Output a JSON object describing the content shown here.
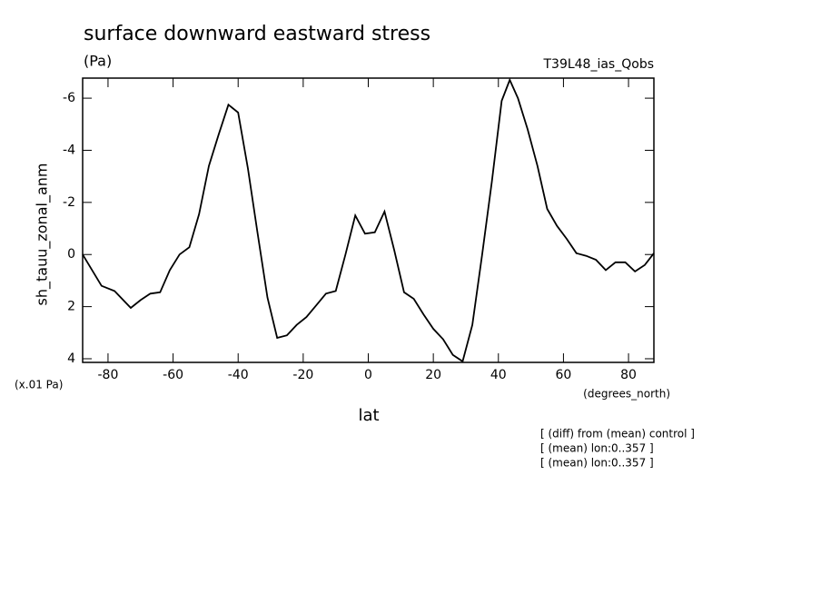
{
  "chart_data": {
    "type": "line",
    "title": "surface downward eastward stress",
    "subtitle": "(Pa)",
    "run_label": "T39L48_ias_Qobs",
    "y_label": "sh_tauu_zonal_anm",
    "y_unit": "(x.01 Pa)",
    "x_unit": "(degrees_north)",
    "x_label": "lat",
    "notes": [
      "[ (diff) from (mean) control ]",
      "[ (mean) lon:0..357 ]",
      "[ (mean) lon:0..357 ]"
    ],
    "x": [
      -87.8,
      -82,
      -78,
      -73,
      -70,
      -67,
      -64,
      -61,
      -58,
      -55,
      -52,
      -49,
      -46,
      -43,
      -40,
      -37,
      -34,
      -31,
      -28,
      -25,
      -22,
      -19,
      -16,
      -13,
      -10,
      -7,
      -4,
      -1,
      2,
      5,
      8,
      11,
      14,
      17,
      20,
      23,
      26,
      29,
      32,
      35,
      38,
      41,
      43.5,
      46,
      49,
      52,
      55,
      58,
      61,
      64,
      67,
      70,
      73,
      76,
      79,
      82,
      85,
      87.8
    ],
    "series": [
      {
        "name": "sh_tauu_zonal_anm",
        "color": "#000000",
        "values": [
          0,
          1.2,
          1.4,
          2.05,
          1.75,
          1.5,
          1.45,
          0.6,
          0,
          -0.28,
          -1.55,
          -3.4,
          -4.6,
          -5.75,
          -5.45,
          -3.3,
          -0.8,
          1.65,
          3.2,
          3.1,
          2.7,
          2.4,
          1.95,
          1.5,
          1.4,
          0,
          -1.5,
          -0.8,
          -0.85,
          -1.65,
          -0.15,
          1.45,
          1.7,
          2.3,
          2.85,
          3.25,
          3.85,
          4.1,
          2.7,
          0,
          -2.8,
          -5.9,
          -6.7,
          -6.0,
          -4.8,
          -3.4,
          -1.75,
          -1.1,
          -0.6,
          -0.05,
          0.05,
          0.2,
          0.6,
          0.3,
          0.3,
          0.65,
          0.4,
          -0.05
        ]
      }
    ],
    "xlim": [
      -87.8,
      87.8
    ],
    "xticks": [
      -80,
      -60,
      -40,
      -20,
      0,
      20,
      40,
      60,
      80
    ],
    "ylim": [
      4.14,
      -6.77
    ],
    "yticks": [
      -6,
      -4,
      -2,
      0,
      2,
      4
    ]
  }
}
